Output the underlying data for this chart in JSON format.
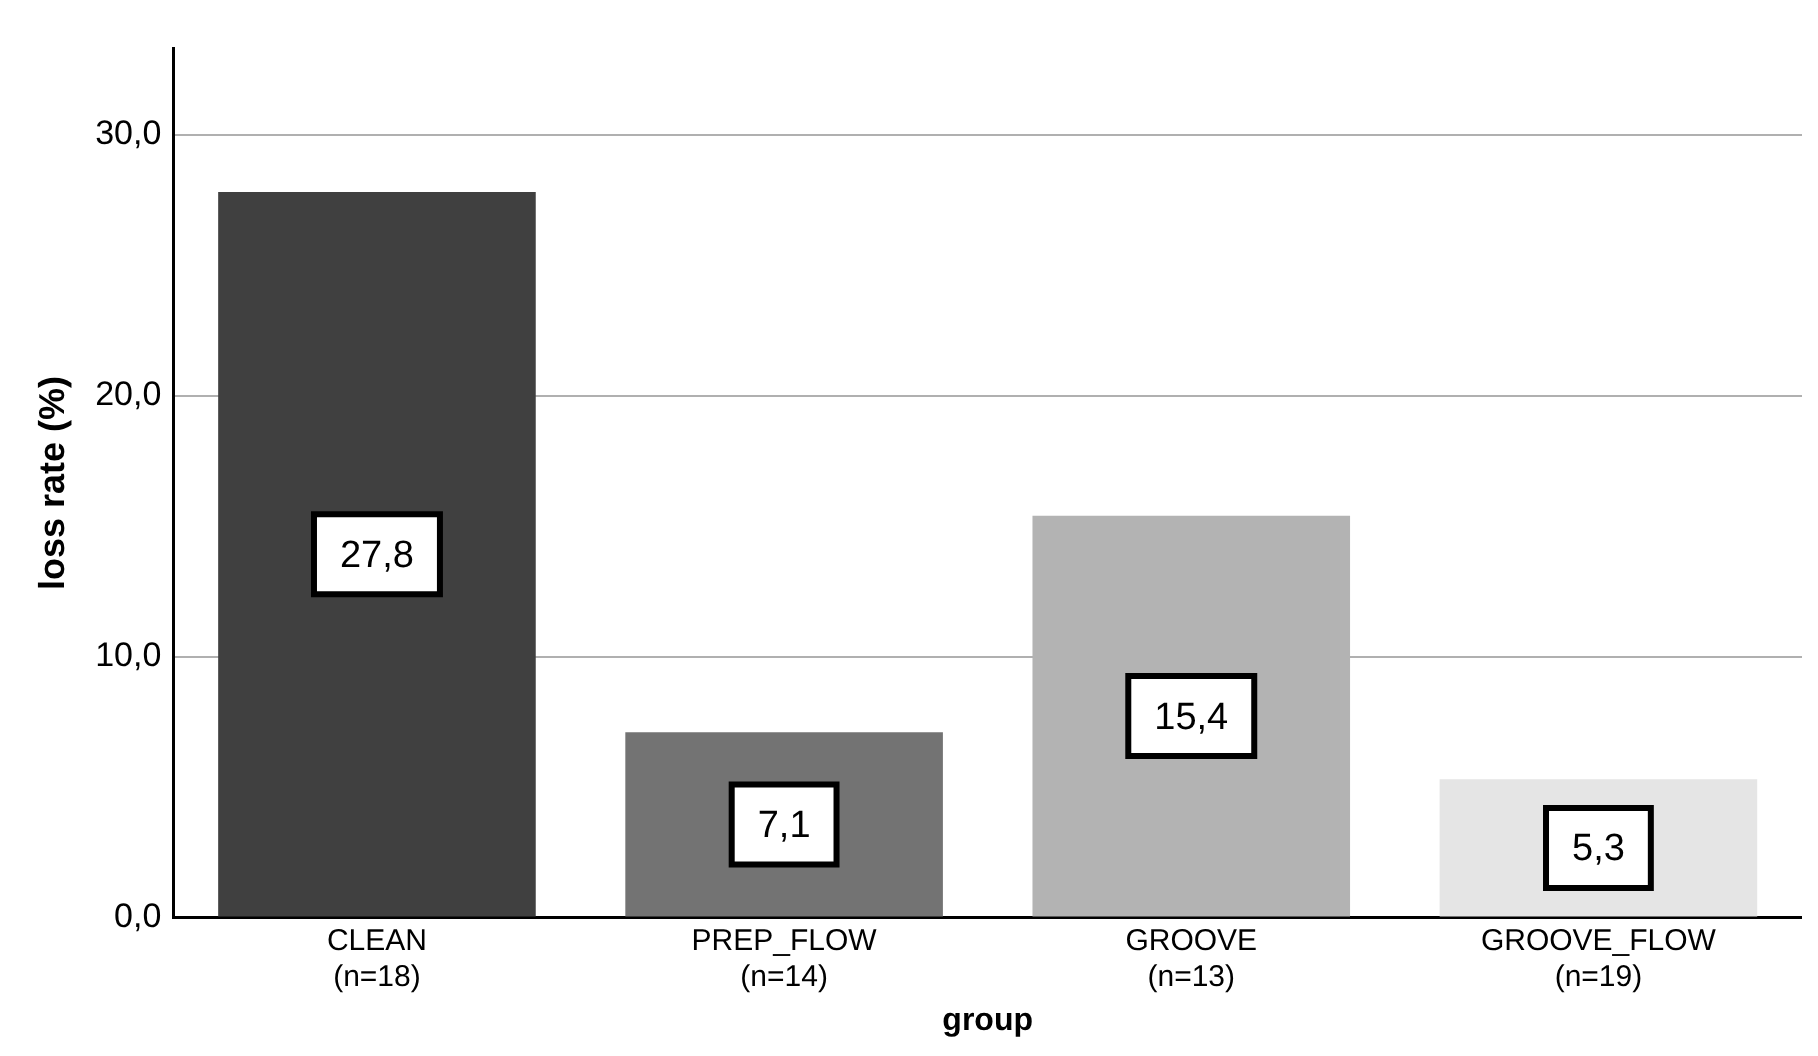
{
  "chart_data": {
    "type": "bar",
    "xlabel": "group",
    "ylabel": "loss rate (%)",
    "categories": [
      "CLEAN\n(n=18)",
      "PREP_FLOW\n(n=14)",
      "GROOVE\n(n=13)",
      "GROOVE_FLOW\n(n=19)"
    ],
    "values": [
      27.8,
      7.1,
      15.4,
      5.3
    ],
    "colors": [
      "#404040",
      "#737373",
      "#b3b3b3",
      "#e5e5e5"
    ],
    "value_labels": [
      "27,8",
      "7,1",
      "15,4",
      "5,3"
    ],
    "ylim": [
      0,
      33.3
    ],
    "yticks": [
      {
        "value": 0,
        "label": "0,0"
      },
      {
        "value": 10,
        "label": "10,0"
      },
      {
        "value": 20,
        "label": "20,0"
      },
      {
        "value": 30,
        "label": "30,0"
      }
    ],
    "grid": "y",
    "legend": false
  }
}
